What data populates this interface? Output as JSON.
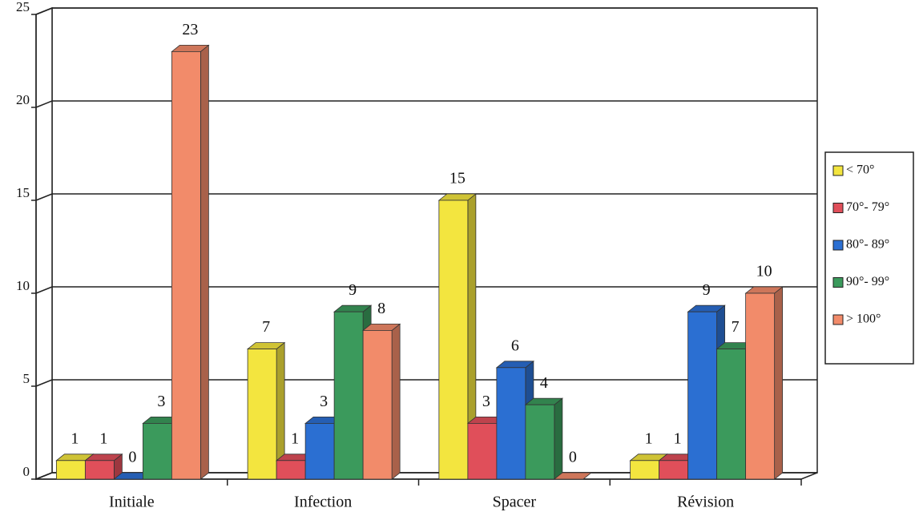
{
  "chart_data": {
    "type": "bar3d",
    "categories": [
      "Initiale",
      "Infection",
      "Spacer",
      "Révision"
    ],
    "series": [
      {
        "name": "< 70°",
        "color": "#f3e53f",
        "values": [
          1,
          7,
          15,
          1
        ]
      },
      {
        "name": "70°- 79°",
        "color": "#e04f5a",
        "values": [
          1,
          1,
          3,
          1
        ]
      },
      {
        "name": "80°- 89°",
        "color": "#2b6fd2",
        "values": [
          0,
          3,
          6,
          9
        ]
      },
      {
        "name": "90°- 99°",
        "color": "#3b9a5c",
        "values": [
          3,
          9,
          4,
          7
        ]
      },
      {
        "name": "> 100°",
        "color": "#f28b6a",
        "values": [
          23,
          8,
          0,
          10
        ]
      }
    ],
    "ylim": [
      0,
      25
    ],
    "yticks": [
      0,
      5,
      10,
      15,
      20,
      25
    ],
    "grid": true,
    "legend": "right"
  }
}
